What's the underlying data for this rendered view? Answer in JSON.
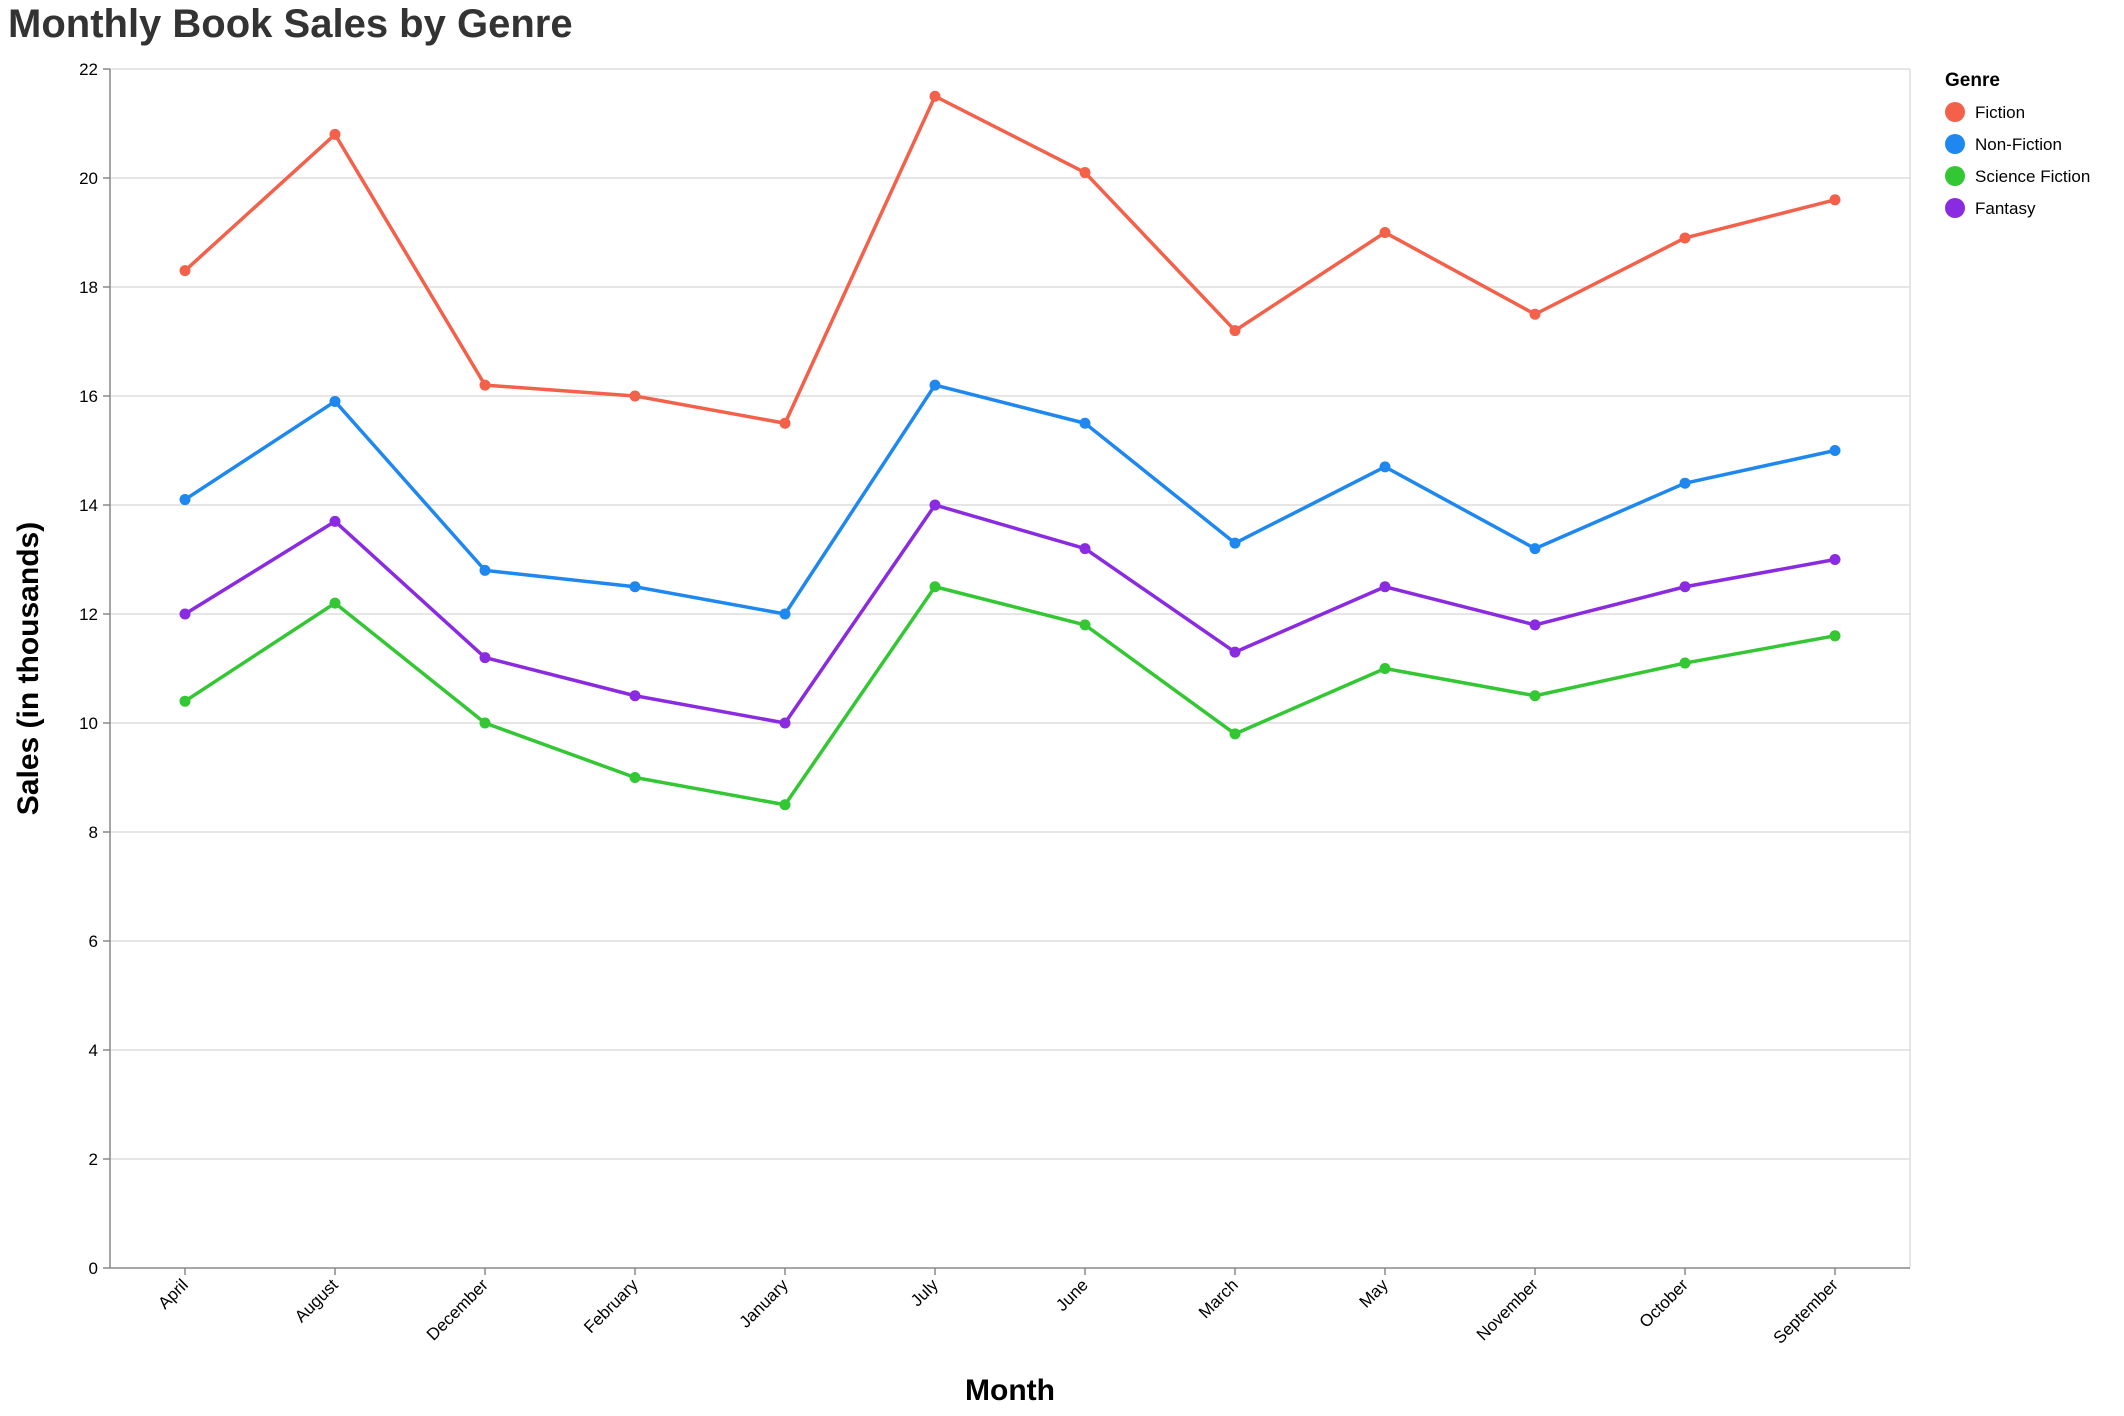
{
  "chart_data": {
    "type": "line",
    "title": "Monthly Book Sales by Genre",
    "xlabel": "Month",
    "ylabel": "Sales (in thousands)",
    "ylim": [
      0,
      22
    ],
    "yticks": [
      0,
      2,
      4,
      6,
      8,
      10,
      12,
      14,
      16,
      18,
      20,
      22
    ],
    "grid": true,
    "legend": {
      "title": "Genre",
      "placement": "top-right"
    },
    "categories": [
      "April",
      "August",
      "December",
      "February",
      "January",
      "July",
      "June",
      "March",
      "May",
      "November",
      "October",
      "September"
    ],
    "series": [
      {
        "name": "Fiction",
        "color": "#f4614b",
        "values": [
          18.3,
          20.8,
          16.2,
          16.0,
          15.5,
          21.5,
          20.1,
          17.2,
          19.0,
          17.5,
          18.9,
          19.6
        ]
      },
      {
        "name": "Non-Fiction",
        "color": "#1e88f0",
        "values": [
          14.1,
          15.9,
          12.8,
          12.5,
          12.0,
          16.2,
          15.5,
          13.3,
          14.7,
          13.2,
          14.4,
          15.0
        ]
      },
      {
        "name": "Science Fiction",
        "color": "#33c733",
        "values": [
          10.4,
          12.2,
          10.0,
          9.0,
          8.5,
          12.5,
          11.8,
          9.8,
          11.0,
          10.5,
          11.1,
          11.6
        ]
      },
      {
        "name": "Fantasy",
        "color": "#8a2be2",
        "values": [
          12.0,
          13.7,
          11.2,
          10.5,
          10.0,
          14.0,
          13.2,
          11.3,
          12.5,
          11.8,
          12.5,
          13.0
        ]
      }
    ]
  }
}
